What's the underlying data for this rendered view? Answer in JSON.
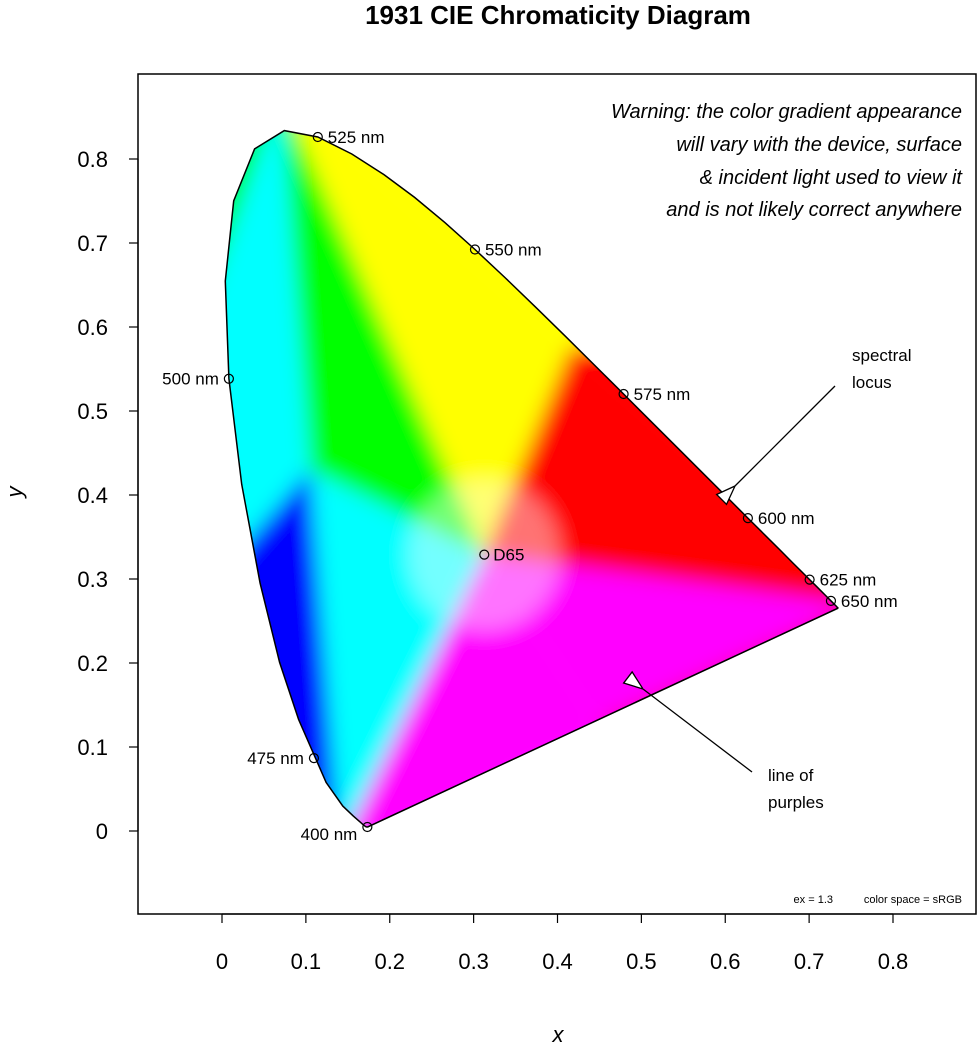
{
  "chart_data": {
    "type": "scatter",
    "title": "1931 CIE Chromaticity Diagram",
    "xlabel": "x",
    "ylabel": "y",
    "xlim": [
      -0.1,
      0.9
    ],
    "ylim": [
      -0.1,
      0.9
    ],
    "x_ticks": [
      "0",
      "0.1",
      "0.2",
      "0.3",
      "0.4",
      "0.5",
      "0.6",
      "0.7",
      "0.8"
    ],
    "y_ticks": [
      "0",
      "0.1",
      "0.2",
      "0.3",
      "0.4",
      "0.5",
      "0.6",
      "0.7",
      "0.8"
    ],
    "grid": false,
    "spectral_locus": [
      [
        0.1741,
        0.005
      ],
      [
        0.1738,
        0.0049
      ],
      [
        0.1733,
        0.0048
      ],
      [
        0.1726,
        0.0048
      ],
      [
        0.1714,
        0.0051
      ],
      [
        0.1689,
        0.0069
      ],
      [
        0.1644,
        0.0109
      ],
      [
        0.1566,
        0.0177
      ],
      [
        0.144,
        0.0297
      ],
      [
        0.1241,
        0.0578
      ],
      [
        0.0913,
        0.1327
      ],
      [
        0.0687,
        0.2007
      ],
      [
        0.0454,
        0.295
      ],
      [
        0.0235,
        0.4127
      ],
      [
        0.0082,
        0.5384
      ],
      [
        0.0039,
        0.6548
      ],
      [
        0.0139,
        0.7502
      ],
      [
        0.0389,
        0.812
      ],
      [
        0.0743,
        0.8338
      ],
      [
        0.1142,
        0.8262
      ],
      [
        0.1547,
        0.8059
      ],
      [
        0.1929,
        0.7816
      ],
      [
        0.2296,
        0.7543
      ],
      [
        0.2658,
        0.7243
      ],
      [
        0.3016,
        0.6923
      ],
      [
        0.3373,
        0.6589
      ],
      [
        0.3731,
        0.6245
      ],
      [
        0.4087,
        0.5896
      ],
      [
        0.4441,
        0.5547
      ],
      [
        0.4788,
        0.5202
      ],
      [
        0.5125,
        0.4866
      ],
      [
        0.5448,
        0.4544
      ],
      [
        0.5752,
        0.4242
      ],
      [
        0.6029,
        0.3965
      ],
      [
        0.627,
        0.3725
      ],
      [
        0.6482,
        0.3514
      ],
      [
        0.6658,
        0.334
      ],
      [
        0.6801,
        0.3197
      ],
      [
        0.6915,
        0.3083
      ],
      [
        0.7006,
        0.2993
      ],
      [
        0.7079,
        0.292
      ],
      [
        0.714,
        0.2859
      ],
      [
        0.719,
        0.2809
      ],
      [
        0.723,
        0.277
      ],
      [
        0.726,
        0.274
      ],
      [
        0.7283,
        0.2717
      ],
      [
        0.73,
        0.27
      ],
      [
        0.7311,
        0.2689
      ],
      [
        0.732,
        0.268
      ],
      [
        0.7327,
        0.2673
      ],
      [
        0.7334,
        0.2666
      ],
      [
        0.734,
        0.266
      ],
      [
        0.7344,
        0.2656
      ],
      [
        0.7346,
        0.2654
      ],
      [
        0.7347,
        0.2653
      ]
    ],
    "gamut_colors": {
      "red": "#ff0000",
      "green": "#00ff00",
      "blue": "#0000ff",
      "yellow": "#ffff00",
      "cyan": "#00ffff",
      "magenta": "#ff00ff",
      "white": "#ffffff"
    },
    "wavelength_points": [
      {
        "label": "400 nm",
        "x": 0.1733,
        "y": 0.0048
      },
      {
        "label": "475 nm",
        "x": 0.1096,
        "y": 0.0868
      },
      {
        "label": "500 nm",
        "x": 0.0082,
        "y": 0.5384
      },
      {
        "label": "525 nm",
        "x": 0.1142,
        "y": 0.8262
      },
      {
        "label": "550 nm",
        "x": 0.3016,
        "y": 0.6923
      },
      {
        "label": "575 nm",
        "x": 0.4788,
        "y": 0.5202
      },
      {
        "label": "600 nm",
        "x": 0.627,
        "y": 0.3725
      },
      {
        "label": "625 nm",
        "x": 0.7006,
        "y": 0.2993
      },
      {
        "label": "650 nm",
        "x": 0.726,
        "y": 0.274
      }
    ],
    "white_point": {
      "label": "D65",
      "x": 0.3127,
      "y": 0.329
    },
    "warning_lines": [
      "Warning: the color gradient appearance",
      "will vary with the device, surface",
      "& incident light used to view it",
      "and is not likely correct anywhere"
    ],
    "annotations": [
      {
        "lines": [
          "spectral",
          "locus"
        ]
      },
      {
        "lines": [
          "line of",
          "purples"
        ]
      }
    ],
    "footer_ex": "ex = 1.3",
    "footer_space": "color space = sRGB"
  }
}
